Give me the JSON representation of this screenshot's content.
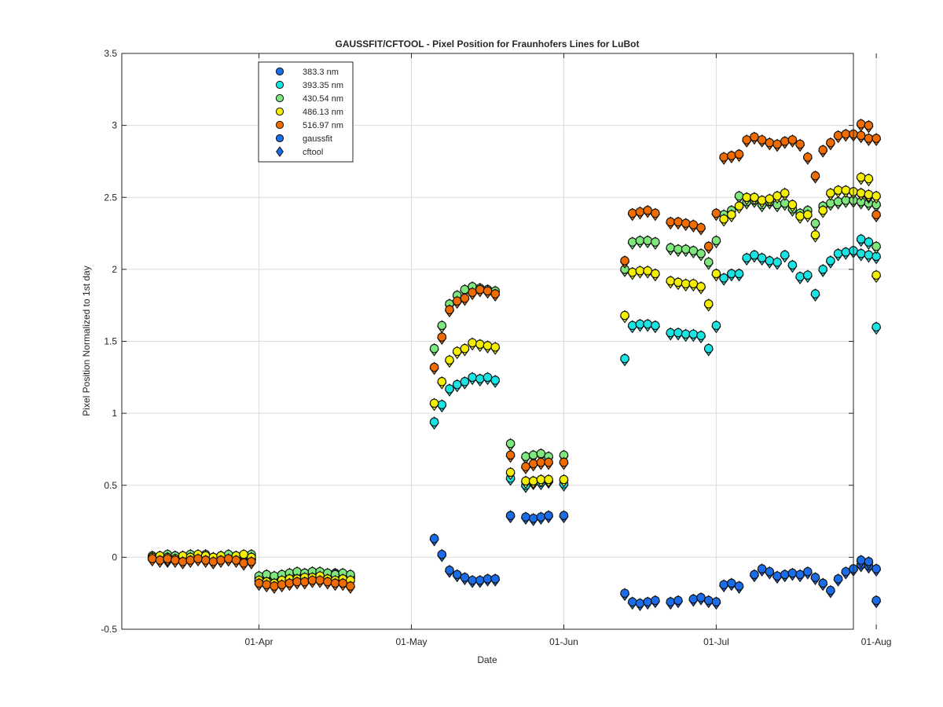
{
  "chart_data": {
    "type": "scatter",
    "title": "GAUSSFIT/CFTOOL - Pixel Position for Fraunhofers Lines for LuBot",
    "xlabel": "Date",
    "ylabel": "Pixel Position Normalized to 1st day",
    "x_range_days": [
      -18,
      78
    ],
    "x_axis_origin": "2016-03-14",
    "ylim": [
      -0.5,
      3.5
    ],
    "grid": true,
    "legend_position": "top-left",
    "xticks": [
      {
        "day": 0,
        "label": "01-Apr"
      },
      {
        "day": 20,
        "label": "01-May"
      },
      {
        "day": 40,
        "label": "01-Jun"
      },
      {
        "day": 60,
        "label": "01-Jul"
      },
      {
        "day": 81,
        "label": "01-Aug"
      }
    ],
    "yticks": [
      "-0.5",
      "0",
      "0.5",
      "1",
      "1.5",
      "2",
      "2.5",
      "3",
      "3.5"
    ],
    "legend": [
      {
        "label": "383.3 nm",
        "marker": "circle",
        "color": "#1a6ce8"
      },
      {
        "label": "393.35 nm",
        "marker": "circle",
        "color": "#19e3e3"
      },
      {
        "label": "430.54 nm",
        "marker": "circle",
        "color": "#7ee87e"
      },
      {
        "label": "486.13 nm",
        "marker": "circle",
        "color": "#f4ee00"
      },
      {
        "label": "516.97 nm",
        "marker": "circle",
        "color": "#f06c00"
      },
      {
        "label": "gaussfit",
        "marker": "circle",
        "color": "#1a6ce8"
      },
      {
        "label": "cftool",
        "marker": "diamond",
        "color": "#1a6ce8"
      }
    ],
    "series": [
      {
        "name": "383.3 nm",
        "color": "#1a6ce8",
        "x": [
          -14,
          -13,
          -12,
          -11,
          -10,
          -9,
          -8,
          -7,
          -6,
          -5,
          -4,
          -3,
          -2,
          -1,
          0,
          1,
          2,
          3,
          4,
          5,
          6,
          7,
          8,
          9,
          10,
          11,
          12,
          23,
          24,
          25,
          26,
          27,
          28,
          29,
          30,
          31,
          33,
          35,
          36,
          37,
          38,
          40,
          48,
          49,
          50,
          51,
          52,
          54,
          55,
          57,
          58,
          59,
          60,
          61,
          62,
          63,
          65,
          66,
          67,
          68,
          69,
          70,
          71,
          72,
          73,
          74,
          75,
          76,
          77,
          78,
          79,
          80,
          81
        ],
        "y": [
          0,
          -0.01,
          -0.02,
          0,
          0.01,
          -0.01,
          0,
          0.01,
          -0.02,
          0,
          -0.01,
          0,
          -0.02,
          -0.01,
          -0.16,
          -0.15,
          -0.14,
          -0.13,
          -0.12,
          -0.12,
          -0.11,
          -0.1,
          -0.11,
          -0.12,
          -0.11,
          -0.12,
          -0.13,
          0.13,
          0.02,
          -0.09,
          -0.12,
          -0.14,
          -0.16,
          -0.16,
          -0.15,
          -0.15,
          0.29,
          0.28,
          0.27,
          0.28,
          0.29,
          0.29,
          -0.25,
          -0.31,
          -0.32,
          -0.31,
          -0.3,
          -0.31,
          -0.3,
          -0.29,
          -0.28,
          -0.3,
          -0.31,
          -0.19,
          -0.18,
          -0.2,
          -0.12,
          -0.08,
          -0.1,
          -0.13,
          -0.12,
          -0.11,
          -0.12,
          -0.1,
          -0.14,
          -0.18,
          -0.23,
          -0.15,
          -0.1,
          -0.08,
          -0.05,
          -0.06,
          -0.08
        ],
        "extra_x": [
          79,
          80,
          81
        ],
        "extra_y": [
          -0.02,
          -0.03,
          -0.3
        ]
      },
      {
        "name": "393.35 nm",
        "color": "#19e3e3",
        "x": [
          -14,
          -13,
          -12,
          -11,
          -10,
          -9,
          -8,
          -7,
          -6,
          -5,
          -4,
          -3,
          -2,
          -1,
          0,
          1,
          2,
          3,
          4,
          5,
          6,
          7,
          8,
          9,
          10,
          11,
          12,
          23,
          24,
          25,
          26,
          27,
          28,
          29,
          30,
          31,
          33,
          35,
          36,
          37,
          38,
          40,
          48,
          49,
          50,
          51,
          52,
          54,
          55,
          56,
          57,
          58,
          59,
          60,
          61,
          62,
          63,
          64,
          65,
          66,
          67,
          68,
          69,
          70,
          71,
          72,
          73,
          74,
          75,
          76,
          77,
          78,
          79,
          80,
          81
        ],
        "y": [
          0,
          -0.01,
          0,
          0.01,
          -0.01,
          0,
          0.01,
          0,
          -0.01,
          0,
          -0.01,
          0.01,
          0,
          -0.01,
          -0.14,
          -0.13,
          -0.15,
          -0.14,
          -0.13,
          -0.12,
          -0.13,
          -0.12,
          -0.11,
          -0.12,
          -0.13,
          -0.12,
          -0.14,
          0.94,
          1.06,
          1.17,
          1.2,
          1.22,
          1.25,
          1.24,
          1.25,
          1.23,
          0.55,
          0.5,
          0.52,
          0.52,
          0.53,
          0.51,
          1.38,
          1.61,
          1.62,
          1.62,
          1.61,
          1.56,
          1.56,
          1.55,
          1.55,
          1.54,
          1.45,
          1.61,
          1.94,
          1.97,
          1.97,
          2.08,
          2.1,
          2.08,
          2.06,
          2.05,
          2.1,
          2.03,
          1.95,
          1.96,
          1.83,
          2.0,
          2.06,
          2.11,
          2.12,
          2.13,
          2.11,
          2.1,
          2.09
        ],
        "extra_x": [
          79,
          80,
          81
        ],
        "extra_y": [
          2.21,
          2.19,
          1.6
        ]
      },
      {
        "name": "430.54 nm",
        "color": "#7ee87e",
        "x": [
          -14,
          -13,
          -12,
          -11,
          -10,
          -9,
          -8,
          -7,
          -6,
          -5,
          -4,
          -3,
          -2,
          -1,
          0,
          1,
          2,
          3,
          4,
          5,
          6,
          7,
          8,
          9,
          10,
          11,
          12,
          23,
          24,
          25,
          26,
          27,
          28,
          29,
          30,
          31,
          33,
          35,
          36,
          37,
          38,
          40,
          48,
          49,
          50,
          51,
          52,
          54,
          55,
          56,
          57,
          58,
          59,
          60,
          61,
          62,
          63,
          64,
          65,
          66,
          67,
          68,
          69,
          70,
          71,
          72,
          73,
          74,
          75,
          76,
          77,
          78,
          79,
          80,
          81
        ],
        "y": [
          0.01,
          0,
          0.02,
          0.01,
          0,
          0.02,
          0.01,
          0.02,
          0,
          0.01,
          0.02,
          0,
          0.01,
          0.02,
          -0.13,
          -0.12,
          -0.13,
          -0.12,
          -0.11,
          -0.1,
          -0.11,
          -0.1,
          -0.1,
          -0.11,
          -0.12,
          -0.11,
          -0.12,
          1.45,
          1.61,
          1.76,
          1.82,
          1.86,
          1.88,
          1.87,
          1.86,
          1.85,
          0.79,
          0.7,
          0.71,
          0.72,
          0.7,
          0.71,
          2.0,
          2.19,
          2.2,
          2.2,
          2.19,
          2.15,
          2.14,
          2.14,
          2.13,
          2.11,
          2.05,
          2.2,
          2.38,
          2.41,
          2.51,
          2.47,
          2.48,
          2.45,
          2.47,
          2.45,
          2.46,
          2.42,
          2.39,
          2.41,
          2.32,
          2.44,
          2.46,
          2.47,
          2.48,
          2.48,
          2.47,
          2.46,
          2.45
        ],
        "extra_x": [
          79,
          80,
          81
        ],
        "extra_y": [
          2.53,
          2.51,
          2.16
        ]
      },
      {
        "name": "486.13 nm",
        "color": "#f4ee00",
        "x": [
          -14,
          -13,
          -12,
          -11,
          -10,
          -9,
          -8,
          -7,
          -6,
          -5,
          -4,
          -3,
          -2,
          -1,
          0,
          1,
          2,
          3,
          4,
          5,
          6,
          7,
          8,
          9,
          10,
          11,
          12,
          23,
          24,
          25,
          26,
          27,
          28,
          29,
          30,
          31,
          33,
          35,
          36,
          37,
          38,
          40,
          48,
          49,
          50,
          51,
          52,
          54,
          55,
          56,
          57,
          58,
          59,
          60,
          61,
          62,
          63,
          64,
          65,
          66,
          67,
          68,
          69,
          70,
          71,
          72,
          73,
          74,
          75,
          76,
          77,
          78,
          79,
          80,
          81
        ],
        "y": [
          0,
          0.01,
          0,
          -0.01,
          0.01,
          0,
          0.02,
          0.01,
          0,
          0.01,
          -0.01,
          0.01,
          0.02,
          0,
          -0.16,
          -0.17,
          -0.18,
          -0.16,
          -0.15,
          -0.15,
          -0.14,
          -0.14,
          -0.13,
          -0.15,
          -0.16,
          -0.15,
          -0.16,
          1.07,
          1.22,
          1.37,
          1.43,
          1.45,
          1.49,
          1.48,
          1.47,
          1.46,
          0.59,
          0.53,
          0.53,
          0.54,
          0.54,
          0.54,
          1.68,
          1.98,
          1.99,
          1.99,
          1.97,
          1.92,
          1.91,
          1.9,
          1.9,
          1.88,
          1.76,
          1.97,
          2.35,
          2.38,
          2.44,
          2.5,
          2.5,
          2.48,
          2.49,
          2.51,
          2.53,
          2.45,
          2.37,
          2.38,
          2.24,
          2.41,
          2.53,
          2.55,
          2.55,
          2.54,
          2.53,
          2.52,
          2.51
        ],
        "extra_x": [
          79,
          80,
          81
        ],
        "extra_y": [
          2.64,
          2.63,
          1.96
        ]
      },
      {
        "name": "516.97 nm",
        "color": "#f06c00",
        "x": [
          -14,
          -13,
          -12,
          -11,
          -10,
          -9,
          -8,
          -7,
          -6,
          -5,
          -4,
          -3,
          -2,
          -1,
          0,
          1,
          2,
          3,
          4,
          5,
          6,
          7,
          8,
          9,
          10,
          11,
          12,
          23,
          24,
          25,
          26,
          27,
          28,
          29,
          30,
          31,
          33,
          35,
          36,
          37,
          38,
          40,
          48,
          49,
          50,
          51,
          52,
          54,
          55,
          56,
          57,
          58,
          59,
          60,
          61,
          62,
          63,
          64,
          65,
          66,
          67,
          68,
          69,
          70,
          71,
          72,
          73,
          74,
          75,
          76,
          77,
          78,
          79,
          80,
          81
        ],
        "y": [
          -0.01,
          -0.02,
          -0.01,
          -0.02,
          -0.03,
          -0.02,
          -0.01,
          -0.02,
          -0.03,
          -0.02,
          -0.01,
          -0.02,
          -0.04,
          -0.03,
          -0.18,
          -0.19,
          -0.2,
          -0.19,
          -0.18,
          -0.17,
          -0.17,
          -0.16,
          -0.16,
          -0.17,
          -0.18,
          -0.18,
          -0.2,
          1.32,
          1.53,
          1.72,
          1.78,
          1.8,
          1.84,
          1.86,
          1.85,
          1.83,
          0.71,
          0.63,
          0.65,
          0.66,
          0.66,
          0.66,
          2.06,
          2.39,
          2.4,
          2.41,
          2.39,
          2.33,
          2.33,
          2.32,
          2.31,
          2.29,
          2.16,
          2.39,
          2.78,
          2.79,
          2.8,
          2.9,
          2.92,
          2.9,
          2.88,
          2.87,
          2.89,
          2.9,
          2.87,
          2.78,
          2.65,
          2.83,
          2.88,
          2.93,
          2.94,
          2.94,
          2.93,
          2.91,
          2.91
        ],
        "extra_x": [
          79,
          80,
          81
        ],
        "extra_y": [
          3.01,
          3.0,
          2.38
        ]
      }
    ]
  }
}
